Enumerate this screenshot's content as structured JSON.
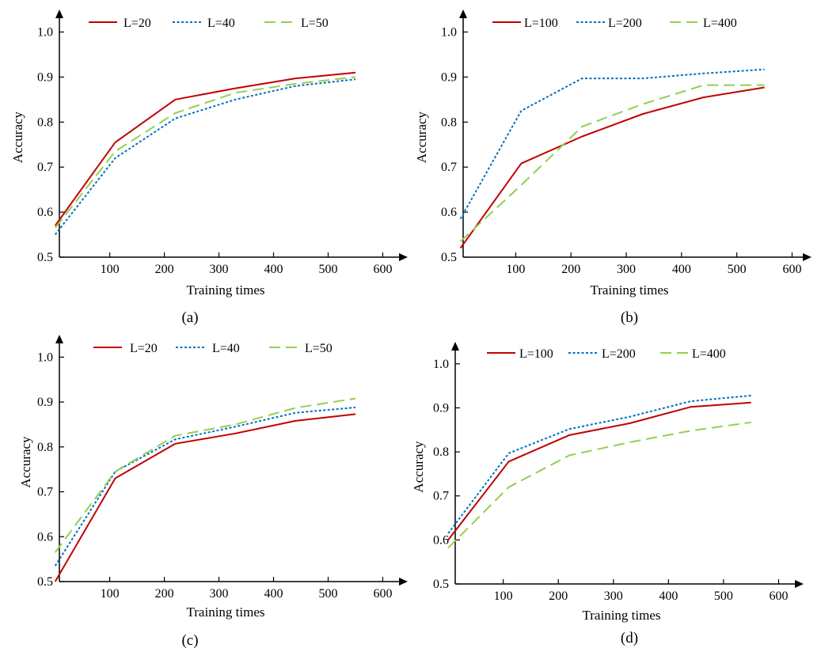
{
  "chart_data": [
    {
      "type": "line",
      "caption": "(a)",
      "xlabel": "Training times",
      "ylabel": "Accuracy",
      "xticks": [
        100,
        200,
        300,
        400,
        500,
        600
      ],
      "yticks": [
        "0.5",
        "0.6",
        "0.7",
        "0.8",
        "0.9",
        "1.0"
      ],
      "xlim": [
        0,
        620
      ],
      "ylim": [
        0.5,
        1.0
      ],
      "legend_position": "top",
      "colors": {
        "L=20": "#c00000",
        "L=40": "#0070c0",
        "L=50": "#92d050"
      },
      "series": [
        {
          "name": "L=20",
          "style": "solid",
          "x": [
            0,
            110,
            220,
            330,
            440,
            550
          ],
          "values": [
            0.57,
            0.755,
            0.85,
            0.875,
            0.897,
            0.91
          ]
        },
        {
          "name": "L=40",
          "style": "dotted",
          "x": [
            0,
            110,
            220,
            330,
            440,
            550
          ],
          "values": [
            0.55,
            0.72,
            0.808,
            0.85,
            0.88,
            0.895
          ]
        },
        {
          "name": "L=50",
          "style": "dashed",
          "x": [
            0,
            110,
            220,
            330,
            440,
            550
          ],
          "values": [
            0.565,
            0.735,
            0.82,
            0.865,
            0.885,
            0.9
          ]
        }
      ]
    },
    {
      "type": "line",
      "caption": "(b)",
      "xlabel": "Training times",
      "ylabel": "Accuracy",
      "xticks": [
        100,
        200,
        300,
        400,
        500,
        600
      ],
      "yticks": [
        "0.5",
        "0.6",
        "0.7",
        "0.8",
        "0.9",
        "1.0"
      ],
      "xlim": [
        0,
        620
      ],
      "ylim": [
        0.5,
        1.0
      ],
      "legend_position": "top",
      "colors": {
        "L=100": "#c00000",
        "L=200": "#0070c0",
        "L=400": "#92d050"
      },
      "series": [
        {
          "name": "L=100",
          "style": "solid",
          "x": [
            0,
            110,
            220,
            330,
            440,
            550
          ],
          "values": [
            0.52,
            0.708,
            0.768,
            0.818,
            0.855,
            0.877
          ]
        },
        {
          "name": "L=200",
          "style": "dotted",
          "x": [
            0,
            110,
            220,
            330,
            440,
            550
          ],
          "values": [
            0.585,
            0.825,
            0.897,
            0.897,
            0.908,
            0.917
          ]
        },
        {
          "name": "L=400",
          "style": "dashed",
          "x": [
            0,
            110,
            220,
            330,
            440,
            550
          ],
          "values": [
            0.535,
            0.66,
            0.79,
            0.84,
            0.882,
            0.882
          ]
        }
      ]
    },
    {
      "type": "line",
      "caption": "(c)",
      "xlabel": "Training times",
      "ylabel": "Accuracy",
      "xticks": [
        100,
        200,
        300,
        400,
        500,
        600
      ],
      "yticks": [
        "0.5",
        "0.6",
        "0.7",
        "0.8",
        "0.9",
        "1.0"
      ],
      "xlim": [
        0,
        620
      ],
      "ylim": [
        0.5,
        1.0
      ],
      "legend_position": "top",
      "colors": {
        "L=20": "#c00000",
        "L=40": "#0070c0",
        "L=50": "#92d050"
      },
      "series": [
        {
          "name": "L=20",
          "style": "solid",
          "x": [
            0,
            110,
            220,
            330,
            440,
            550
          ],
          "values": [
            0.5,
            0.73,
            0.807,
            0.83,
            0.858,
            0.873
          ]
        },
        {
          "name": "L=40",
          "style": "dotted",
          "x": [
            0,
            110,
            220,
            330,
            440,
            550
          ],
          "values": [
            0.535,
            0.745,
            0.817,
            0.845,
            0.876,
            0.888
          ]
        },
        {
          "name": "L=50",
          "style": "dashed",
          "x": [
            0,
            110,
            220,
            330,
            440,
            550
          ],
          "values": [
            0.565,
            0.745,
            0.825,
            0.85,
            0.887,
            0.908
          ]
        }
      ]
    },
    {
      "type": "line",
      "caption": "(d)",
      "xlabel": "Training times",
      "ylabel": "Accuracy",
      "xticks": [
        100,
        200,
        300,
        400,
        500,
        600
      ],
      "yticks": [
        "0.5",
        "0.6",
        "0.7",
        "0.8",
        "0.9",
        "1.0"
      ],
      "xlim": [
        0,
        620
      ],
      "ylim": [
        0.5,
        1.0
      ],
      "legend_position": "top",
      "colors": {
        "L=100": "#c00000",
        "L=200": "#0070c0",
        "L=400": "#92d050"
      },
      "series": [
        {
          "name": "L=100",
          "style": "solid",
          "x": [
            0,
            110,
            220,
            330,
            440,
            550
          ],
          "values": [
            0.6,
            0.778,
            0.838,
            0.865,
            0.902,
            0.912
          ]
        },
        {
          "name": "L=200",
          "style": "dotted",
          "x": [
            0,
            110,
            220,
            330,
            440,
            550
          ],
          "values": [
            0.615,
            0.797,
            0.852,
            0.88,
            0.915,
            0.928
          ]
        },
        {
          "name": "L=400",
          "style": "dashed",
          "x": [
            0,
            110,
            220,
            330,
            440,
            550
          ],
          "values": [
            0.582,
            0.72,
            0.792,
            0.822,
            0.848,
            0.867
          ]
        }
      ]
    }
  ]
}
